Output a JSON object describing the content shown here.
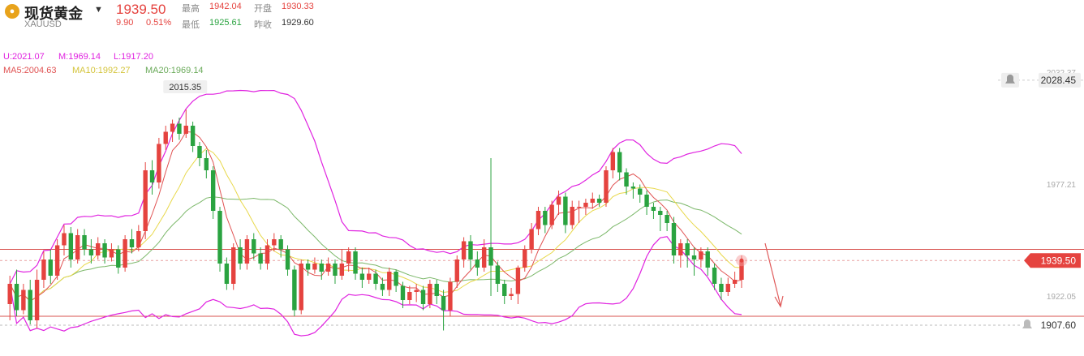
{
  "header": {
    "name": "现货黄金",
    "code": "XAUUSD",
    "price": "1939.50",
    "change": "9.90",
    "change_pct": "0.51%",
    "high_label": "最高",
    "high": "1942.04",
    "open_label": "开盘",
    "open": "1930.33",
    "low_label": "最低",
    "low": "1925.61",
    "prev_label": "昨收",
    "prev_close": "1929.60"
  },
  "indicators": {
    "boll": {
      "u": "U:2021.07",
      "m": "M:1969.14",
      "l": "L:1917.20"
    },
    "ma": {
      "ma5": "MA5:2004.63",
      "ma10": "MA10:1992.27",
      "ma20": "MA20:1969.14"
    }
  },
  "colors": {
    "up": "#e5433f",
    "down": "#2aa340",
    "boll": "#e023e0",
    "ma5": "#e05252",
    "ma10": "#e8d84a",
    "ma20": "#7cb86a"
  },
  "chart_data": {
    "type": "candlestick",
    "y_ticks": [
      "2032.37",
      "1977.21",
      "1922.05"
    ],
    "ylim": [
      1900,
      2040
    ],
    "max_label": "2015.35",
    "price_marks": {
      "current": "1939.50",
      "upper_alert": "2028.45",
      "lower_alert": "1907.60"
    },
    "h_lines": [
      1945.0,
      1912.0
    ],
    "candles": [
      [
        1918,
        1928,
        1910,
        1932
      ],
      [
        1928,
        1915,
        1912,
        1935
      ],
      [
        1915,
        1925,
        1913,
        1928
      ],
      [
        1925,
        1910,
        1908,
        1930
      ],
      [
        1910,
        1930,
        1906,
        1935
      ],
      [
        1930,
        1940,
        1926,
        1944
      ],
      [
        1940,
        1932,
        1928,
        1945
      ],
      [
        1932,
        1947,
        1930,
        1950
      ],
      [
        1947,
        1953,
        1942,
        1957
      ],
      [
        1953,
        1940,
        1936,
        1956
      ],
      [
        1940,
        1952,
        1938,
        1955
      ],
      [
        1952,
        1945,
        1942,
        1955
      ],
      [
        1945,
        1942,
        1938,
        1950
      ],
      [
        1942,
        1948,
        1940,
        1951
      ],
      [
        1948,
        1941,
        1938,
        1950
      ],
      [
        1941,
        1945,
        1939,
        1948
      ],
      [
        1945,
        1936,
        1933,
        1947
      ],
      [
        1936,
        1950,
        1934,
        1952
      ],
      [
        1950,
        1946,
        1943,
        1955
      ],
      [
        1946,
        1954,
        1944,
        1957
      ],
      [
        1954,
        1984,
        1950,
        1988
      ],
      [
        1984,
        1978,
        1972,
        1989
      ],
      [
        1978,
        1997,
        1975,
        2000
      ],
      [
        1997,
        2003,
        1994,
        2006
      ],
      [
        2003,
        2007,
        1998,
        2009
      ],
      [
        2007,
        2002,
        1999,
        2010
      ],
      [
        2002,
        2006,
        2000,
        2014
      ],
      [
        2006,
        1996,
        1993,
        2008
      ],
      [
        1996,
        1990,
        1986,
        1998
      ],
      [
        1990,
        1984,
        1980,
        1994
      ],
      [
        1984,
        1964,
        1960,
        1986
      ],
      [
        1964,
        1938,
        1934,
        1966
      ],
      [
        1938,
        1928,
        1925,
        1941
      ],
      [
        1928,
        1946,
        1925,
        1948
      ],
      [
        1946,
        1938,
        1935,
        1950
      ],
      [
        1938,
        1950,
        1935,
        1952
      ],
      [
        1950,
        1943,
        1940,
        1953
      ],
      [
        1943,
        1938,
        1935,
        1946
      ],
      [
        1938,
        1947,
        1935,
        1950
      ],
      [
        1947,
        1950,
        1944,
        1953
      ],
      [
        1950,
        1945,
        1941,
        1952
      ],
      [
        1945,
        1935,
        1932,
        1947
      ],
      [
        1935,
        1915,
        1912,
        1937
      ],
      [
        1915,
        1938,
        1913,
        1940
      ],
      [
        1938,
        1935,
        1932,
        1940
      ],
      [
        1935,
        1938,
        1933,
        1941
      ],
      [
        1938,
        1934,
        1930,
        1940
      ],
      [
        1934,
        1938,
        1932,
        1941
      ],
      [
        1938,
        1932,
        1928,
        1940
      ],
      [
        1932,
        1938,
        1930,
        1945
      ],
      [
        1938,
        1944,
        1934,
        1946
      ],
      [
        1944,
        1933,
        1930,
        1946
      ],
      [
        1933,
        1930,
        1926,
        1936
      ],
      [
        1930,
        1933,
        1928,
        1936
      ],
      [
        1933,
        1928,
        1925,
        1935
      ],
      [
        1928,
        1925,
        1922,
        1931
      ],
      [
        1925,
        1934,
        1922,
        1936
      ],
      [
        1934,
        1927,
        1924,
        1935
      ],
      [
        1927,
        1920,
        1916,
        1929
      ],
      [
        1920,
        1924,
        1918,
        1927
      ],
      [
        1924,
        1925,
        1919,
        1928
      ],
      [
        1925,
        1918,
        1915,
        1927
      ],
      [
        1918,
        1928,
        1916,
        1930
      ],
      [
        1928,
        1922,
        1918,
        1930
      ],
      [
        1922,
        1915,
        1905,
        1925
      ],
      [
        1915,
        1929,
        1912,
        1931
      ],
      [
        1929,
        1940,
        1926,
        1942
      ],
      [
        1940,
        1949,
        1936,
        1951
      ],
      [
        1949,
        1940,
        1935,
        1952
      ],
      [
        1940,
        1936,
        1932,
        1944
      ],
      [
        1936,
        1946,
        1934,
        1950
      ],
      [
        1946,
        1937,
        1922,
        1990
      ],
      [
        1937,
        1928,
        1924,
        1939
      ],
      [
        1928,
        1922,
        1918,
        1930
      ],
      [
        1922,
        1923,
        1920,
        1926
      ],
      [
        1923,
        1936,
        1918,
        1937
      ],
      [
        1936,
        1945,
        1934,
        1947
      ],
      [
        1945,
        1955,
        1943,
        1958
      ],
      [
        1955,
        1964,
        1952,
        1966
      ],
      [
        1964,
        1957,
        1953,
        1966
      ],
      [
        1957,
        1967,
        1955,
        1969
      ],
      [
        1967,
        1971,
        1962,
        1974
      ],
      [
        1971,
        1957,
        1953,
        1973
      ],
      [
        1957,
        1966,
        1955,
        1969
      ],
      [
        1966,
        1966,
        1958,
        1969
      ],
      [
        1966,
        1968,
        1962,
        1970
      ],
      [
        1968,
        1970,
        1965,
        1973
      ],
      [
        1970,
        1968,
        1966,
        1972
      ],
      [
        1968,
        1984,
        1966,
        1986
      ],
      [
        1984,
        1993,
        1980,
        1995
      ],
      [
        1993,
        1983,
        1979,
        1995
      ],
      [
        1983,
        1976,
        1972,
        1985
      ],
      [
        1976,
        1975,
        1970,
        1978
      ],
      [
        1975,
        1972,
        1968,
        1977
      ],
      [
        1972,
        1966,
        1962,
        1974
      ],
      [
        1966,
        1964,
        1960,
        1968
      ],
      [
        1964,
        1962,
        1954,
        1966
      ],
      [
        1962,
        1958,
        1954,
        1964
      ],
      [
        1958,
        1942,
        1938,
        1961
      ],
      [
        1942,
        1948,
        1936,
        1950
      ],
      [
        1948,
        1942,
        1936,
        1950
      ],
      [
        1942,
        1940,
        1932,
        1946
      ],
      [
        1940,
        1944,
        1936,
        1946
      ],
      [
        1944,
        1936,
        1932,
        1946
      ],
      [
        1936,
        1928,
        1925,
        1938
      ],
      [
        1928,
        1924,
        1920,
        1931
      ],
      [
        1924,
        1928,
        1922,
        1931
      ],
      [
        1928,
        1930,
        1926,
        1934
      ],
      [
        1930,
        1939.5,
        1926,
        1942
      ]
    ]
  }
}
